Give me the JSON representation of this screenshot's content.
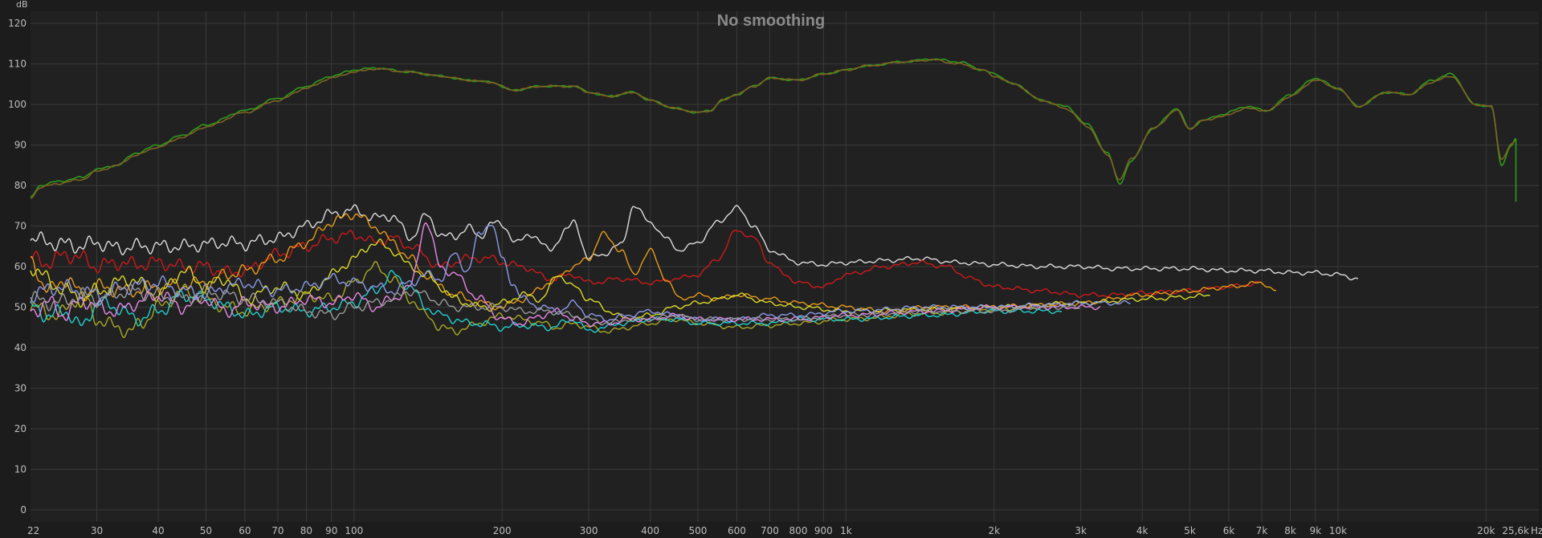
{
  "chart_data": {
    "type": "line",
    "title": "No smoothing",
    "ylabel": "dB",
    "xlabel_unit": "Hz",
    "xscale": "log",
    "xlim": [
      22,
      25600
    ],
    "ylim": [
      -3,
      123
    ],
    "grid": true,
    "background": "#212121",
    "y_ticks": [
      0,
      10,
      20,
      30,
      40,
      50,
      60,
      70,
      80,
      90,
      100,
      110,
      120
    ],
    "x_ticks": [
      {
        "v": 22,
        "label": "22"
      },
      {
        "v": 30,
        "label": "30"
      },
      {
        "v": 40,
        "label": "40"
      },
      {
        "v": 50,
        "label": "50"
      },
      {
        "v": 60,
        "label": "60"
      },
      {
        "v": 70,
        "label": "70"
      },
      {
        "v": 80,
        "label": "80"
      },
      {
        "v": 90,
        "label": "90"
      },
      {
        "v": 100,
        "label": "100"
      },
      {
        "v": 200,
        "label": "200"
      },
      {
        "v": 300,
        "label": "300"
      },
      {
        "v": 400,
        "label": "400"
      },
      {
        "v": 500,
        "label": "500"
      },
      {
        "v": 600,
        "label": "600"
      },
      {
        "v": 700,
        "label": "700"
      },
      {
        "v": 800,
        "label": "800"
      },
      {
        "v": 900,
        "label": "900"
      },
      {
        "v": 1000,
        "label": "1k"
      },
      {
        "v": 2000,
        "label": "2k"
      },
      {
        "v": 3000,
        "label": "3k"
      },
      {
        "v": 4000,
        "label": "4k"
      },
      {
        "v": 5000,
        "label": "5k"
      },
      {
        "v": 6000,
        "label": "6k"
      },
      {
        "v": 7000,
        "label": "7k"
      },
      {
        "v": 8000,
        "label": "8k"
      },
      {
        "v": 9000,
        "label": "9k"
      },
      {
        "v": 10000,
        "label": "10k"
      },
      {
        "v": 20000,
        "label": "20k"
      },
      {
        "v": 25600,
        "label": "25,6k"
      }
    ],
    "series": [
      {
        "color": "#2e9a1a",
        "width": 1.6,
        "x": [
          22,
          23,
          25,
          28,
          30,
          33,
          36,
          40,
          45,
          50,
          60,
          70,
          80,
          90,
          100,
          110,
          130,
          150,
          170,
          190,
          210,
          240,
          280,
          300,
          330,
          370,
          400,
          450,
          500,
          530,
          560,
          600,
          650,
          700,
          800,
          900,
          1000,
          1100,
          1300,
          1500,
          1700,
          1900,
          2000,
          2200,
          2500,
          2800,
          3100,
          3400,
          3600,
          3800,
          4200,
          4700,
          5000,
          5300,
          5800,
          6500,
          7200,
          8000,
          9000,
          10000,
          11000,
          12500,
          14000,
          15500,
          17000,
          19000,
          20500,
          21500,
          22500,
          23000
        ],
        "y": [
          77,
          80,
          81,
          82,
          84,
          85,
          88,
          90,
          92.5,
          95,
          98.5,
          101.5,
          104.5,
          107,
          108.5,
          109,
          108,
          107,
          106,
          105.5,
          103.5,
          104.5,
          104.5,
          103,
          102,
          103,
          101,
          99,
          98,
          98.5,
          101,
          102.5,
          104.5,
          106.5,
          106,
          107.5,
          108.5,
          109.5,
          110.5,
          111.2,
          110.5,
          108.5,
          107.5,
          105,
          101,
          99.5,
          95,
          88,
          80.5,
          86,
          94,
          99,
          94,
          96,
          97.5,
          99.5,
          98.5,
          102.5,
          106.5,
          104,
          99.5,
          103,
          102.5,
          106,
          107.5,
          100,
          99.5,
          85,
          90,
          91.5
        ]
      },
      {
        "color": "#7d6322",
        "width": 1.6,
        "x": [
          22,
          23,
          25,
          28,
          30,
          33,
          36,
          40,
          45,
          50,
          60,
          70,
          80,
          90,
          100,
          110,
          130,
          150,
          170,
          190,
          210,
          240,
          280,
          300,
          330,
          370,
          400,
          450,
          500,
          530,
          560,
          600,
          650,
          700,
          800,
          900,
          1000,
          1100,
          1300,
          1500,
          1700,
          1900,
          2000,
          2200,
          2500,
          2800,
          3100,
          3400,
          3600,
          3800,
          4200,
          4700,
          5000,
          5300,
          5800,
          6500,
          7200,
          8000,
          9000,
          10000,
          11000,
          12500,
          14000,
          15500,
          17000,
          19000,
          20500,
          21500,
          22500,
          23000
        ],
        "y": [
          77,
          79.5,
          80.5,
          81.5,
          83.5,
          85,
          87.5,
          89.5,
          92,
          94.5,
          98,
          101,
          104,
          106.5,
          108,
          108.8,
          108,
          107,
          106,
          105.5,
          103.5,
          104.5,
          104.5,
          103,
          102,
          103,
          101,
          99,
          98,
          98.5,
          101,
          102.5,
          104.5,
          106.5,
          106,
          107.5,
          108.5,
          109.5,
          110.5,
          111,
          110,
          108.5,
          107,
          105,
          101,
          99,
          94.5,
          87.5,
          81.5,
          86.5,
          94,
          98.5,
          94,
          96,
          97,
          99,
          98.5,
          102,
          106,
          104,
          99.5,
          103,
          102.5,
          105.5,
          107,
          100,
          99.5,
          86.5,
          90,
          91
        ]
      },
      {
        "color": "#dcdcdc",
        "width": 1.4,
        "x": [
          22,
          24,
          26,
          28,
          30,
          33,
          36,
          40,
          45,
          50,
          55,
          60,
          65,
          70,
          80,
          90,
          100,
          110,
          120,
          130,
          140,
          150,
          160,
          170,
          180,
          190,
          200,
          215,
          230,
          250,
          270,
          280,
          300,
          320,
          350,
          370,
          400,
          430,
          460,
          500,
          550,
          600,
          650,
          700,
          800,
          900,
          1000,
          1200,
          1400,
          1700,
          2000,
          2500,
          3000,
          3500,
          4000,
          5000,
          6000,
          7000,
          8000,
          9000,
          10000,
          11000
        ],
        "y": [
          67,
          66,
          65.5,
          65,
          66,
          64.5,
          65,
          65,
          65,
          65.5,
          66,
          65.5,
          66.5,
          67,
          70,
          73,
          74,
          72,
          72.5,
          67,
          72.5,
          68,
          67,
          70,
          67,
          71,
          70,
          66,
          68,
          64,
          69,
          71,
          62,
          63,
          65.5,
          75,
          71,
          67,
          64,
          66,
          71,
          74.5,
          70,
          64,
          61,
          60.5,
          61,
          61.5,
          62,
          61,
          60.5,
          60,
          60,
          59.5,
          59.5,
          59.5,
          59,
          59,
          58.5,
          58.5,
          58,
          57
        ]
      },
      {
        "color": "#cc1a1a",
        "width": 1.4,
        "x": [
          22,
          24,
          26,
          28,
          30,
          33,
          36,
          40,
          45,
          50,
          55,
          60,
          70,
          80,
          90,
          100,
          110,
          120,
          130,
          150,
          170,
          190,
          200,
          220,
          250,
          280,
          300,
          350,
          400,
          450,
          500,
          550,
          600,
          650,
          700,
          750,
          800,
          900,
          1000,
          1200,
          1400,
          1600,
          1800,
          2000,
          2500,
          3000,
          3500,
          4000,
          5000,
          6000,
          7000
        ],
        "y": [
          62,
          61,
          63,
          62,
          60,
          61,
          60.5,
          61,
          60,
          60,
          58.5,
          59,
          63,
          65,
          67,
          68,
          66,
          67,
          65,
          60,
          62,
          62,
          61,
          60,
          57,
          58,
          56,
          57,
          56,
          57,
          58,
          62,
          69,
          67,
          61,
          58,
          56,
          55,
          58,
          60,
          61,
          60,
          57,
          55,
          54,
          53,
          53,
          53.5,
          54,
          55,
          56
        ]
      },
      {
        "color": "#e69a1a",
        "width": 1.4,
        "x": [
          22,
          24,
          26,
          28,
          30,
          35,
          40,
          45,
          50,
          55,
          60,
          70,
          80,
          90,
          100,
          110,
          120,
          130,
          140,
          150,
          160,
          180,
          200,
          220,
          250,
          280,
          300,
          320,
          350,
          370,
          400,
          430,
          460,
          500,
          550,
          600,
          700,
          800,
          1000,
          1200,
          1500,
          2000,
          2500,
          3000,
          4000,
          5000,
          6000,
          7000,
          7500
        ],
        "y": [
          61,
          54,
          57,
          53,
          55,
          54,
          55,
          55.5,
          56,
          58,
          59,
          62,
          66,
          71,
          73,
          70,
          66,
          62,
          58,
          55,
          53,
          51,
          50,
          52,
          56,
          60,
          62,
          68,
          64,
          58,
          64,
          57,
          52,
          53,
          52,
          53,
          52,
          51,
          50,
          49,
          50,
          50,
          50.5,
          51,
          53,
          54,
          55,
          56,
          54
        ]
      },
      {
        "color": "#d9d92b",
        "width": 1.4,
        "x": [
          22,
          25,
          28,
          30,
          35,
          40,
          45,
          50,
          55,
          60,
          70,
          80,
          90,
          100,
          110,
          120,
          130,
          140,
          150,
          160,
          170,
          180,
          190,
          200,
          220,
          240,
          260,
          280,
          300,
          330,
          360,
          400,
          450,
          500,
          550,
          600,
          700,
          800,
          1000,
          1500,
          2000,
          3000,
          4000,
          5000,
          5500
        ],
        "y": [
          60,
          55,
          52,
          54,
          57,
          53,
          59,
          55,
          57,
          52,
          55,
          53,
          58,
          62,
          66,
          64,
          60,
          58,
          55,
          52,
          51,
          50,
          50,
          51,
          53,
          52,
          58,
          55,
          52,
          49,
          47,
          48,
          50,
          51,
          52,
          53,
          51,
          50,
          49,
          49.5,
          50,
          51,
          52,
          52.5,
          53
        ]
      },
      {
        "color": "#a8a826",
        "width": 1.4,
        "x": [
          22,
          25,
          28,
          30,
          33,
          35,
          37,
          40,
          45,
          50,
          55,
          60,
          70,
          80,
          90,
          100,
          110,
          120,
          130,
          140,
          150,
          160,
          170,
          180,
          190,
          200,
          220,
          240,
          260,
          280,
          300,
          330,
          360,
          400,
          450,
          500,
          600,
          700,
          800,
          1000,
          1500,
          2000,
          2500
        ],
        "y": [
          50,
          48,
          53,
          47,
          45,
          44,
          46,
          50,
          54,
          52,
          50,
          49,
          51,
          53,
          52,
          56,
          60,
          57,
          52,
          48,
          45,
          44,
          45,
          46,
          47,
          48,
          47,
          46,
          45,
          46,
          45,
          44,
          45,
          46,
          47,
          46,
          45,
          45.5,
          46,
          47,
          48.5,
          49.5,
          50
        ]
      },
      {
        "color": "#22cfcf",
        "width": 1.4,
        "x": [
          22,
          24,
          26,
          28,
          30,
          33,
          36,
          40,
          45,
          50,
          55,
          60,
          70,
          80,
          90,
          100,
          110,
          120,
          130,
          140,
          150,
          160,
          170,
          180,
          200,
          220,
          250,
          280,
          300,
          320,
          350,
          400,
          450,
          500,
          600,
          700,
          800,
          1000,
          1500,
          2000,
          2500,
          2750
        ],
        "y": [
          50,
          48,
          49,
          45,
          51,
          50,
          47,
          49,
          53,
          52,
          50,
          48,
          50,
          49,
          50,
          51,
          54,
          58,
          55,
          50,
          48,
          47,
          46,
          46,
          45,
          45.5,
          45,
          47,
          44,
          45,
          46,
          47,
          47,
          46,
          46,
          46,
          47,
          47,
          48,
          49,
          49,
          49
        ]
      },
      {
        "color": "#e889e8",
        "width": 1.4,
        "x": [
          22,
          24,
          26,
          28,
          30,
          33,
          36,
          40,
          45,
          50,
          55,
          60,
          70,
          80,
          90,
          100,
          110,
          120,
          130,
          140,
          150,
          160,
          180,
          200,
          220,
          240,
          260,
          280,
          300,
          330,
          360,
          400,
          450,
          500,
          600,
          700,
          800,
          1000,
          1500,
          2000,
          2500,
          3000,
          3300
        ],
        "y": [
          49,
          51,
          48,
          52,
          50,
          49,
          51,
          53,
          50,
          52,
          49,
          51,
          50,
          52,
          51,
          53,
          50,
          52,
          55,
          71,
          60,
          58,
          52,
          47,
          46,
          48,
          49,
          47,
          46,
          46,
          47,
          47,
          48,
          47,
          47,
          47,
          47,
          48,
          49,
          50,
          50,
          50,
          50
        ]
      },
      {
        "color": "#8c9ae8",
        "width": 1.4,
        "x": [
          22,
          25,
          28,
          30,
          35,
          40,
          45,
          50,
          55,
          60,
          70,
          80,
          90,
          100,
          110,
          120,
          130,
          140,
          150,
          160,
          170,
          180,
          190,
          200,
          210,
          220,
          240,
          260,
          280,
          300,
          330,
          360,
          400,
          450,
          500,
          600,
          700,
          800,
          1000,
          1500,
          2000,
          2500,
          3000,
          3500,
          3800
        ],
        "y": [
          53,
          55,
          54,
          53,
          55,
          56,
          54,
          53,
          55,
          56,
          54,
          55,
          57,
          56,
          55,
          54,
          56,
          58,
          57,
          63,
          59,
          68,
          71,
          62,
          56,
          52,
          50,
          49,
          51,
          48,
          47,
          48,
          49,
          48,
          47,
          47,
          48,
          48,
          49,
          50,
          50,
          50.5,
          51,
          51,
          51
        ]
      },
      {
        "color": "#9a9a9a",
        "width": 1.4,
        "x": [
          22,
          25,
          28,
          30,
          35,
          40,
          45,
          50,
          55,
          60,
          70,
          80,
          90,
          100,
          110,
          120,
          130,
          140,
          150,
          160,
          180,
          200,
          220,
          250,
          280,
          300,
          330,
          360,
          400,
          450,
          500,
          600,
          700,
          800,
          1000,
          1500,
          2000,
          2500,
          3000
        ],
        "y": [
          52,
          51,
          53,
          52,
          54,
          53,
          52,
          54,
          53,
          52,
          51,
          49,
          48,
          50,
          51,
          52,
          54,
          53,
          51,
          50,
          50,
          50,
          49,
          49,
          48,
          47,
          46,
          47,
          47,
          48,
          47,
          47,
          47,
          47,
          48,
          49,
          49,
          50,
          50
        ]
      }
    ]
  }
}
